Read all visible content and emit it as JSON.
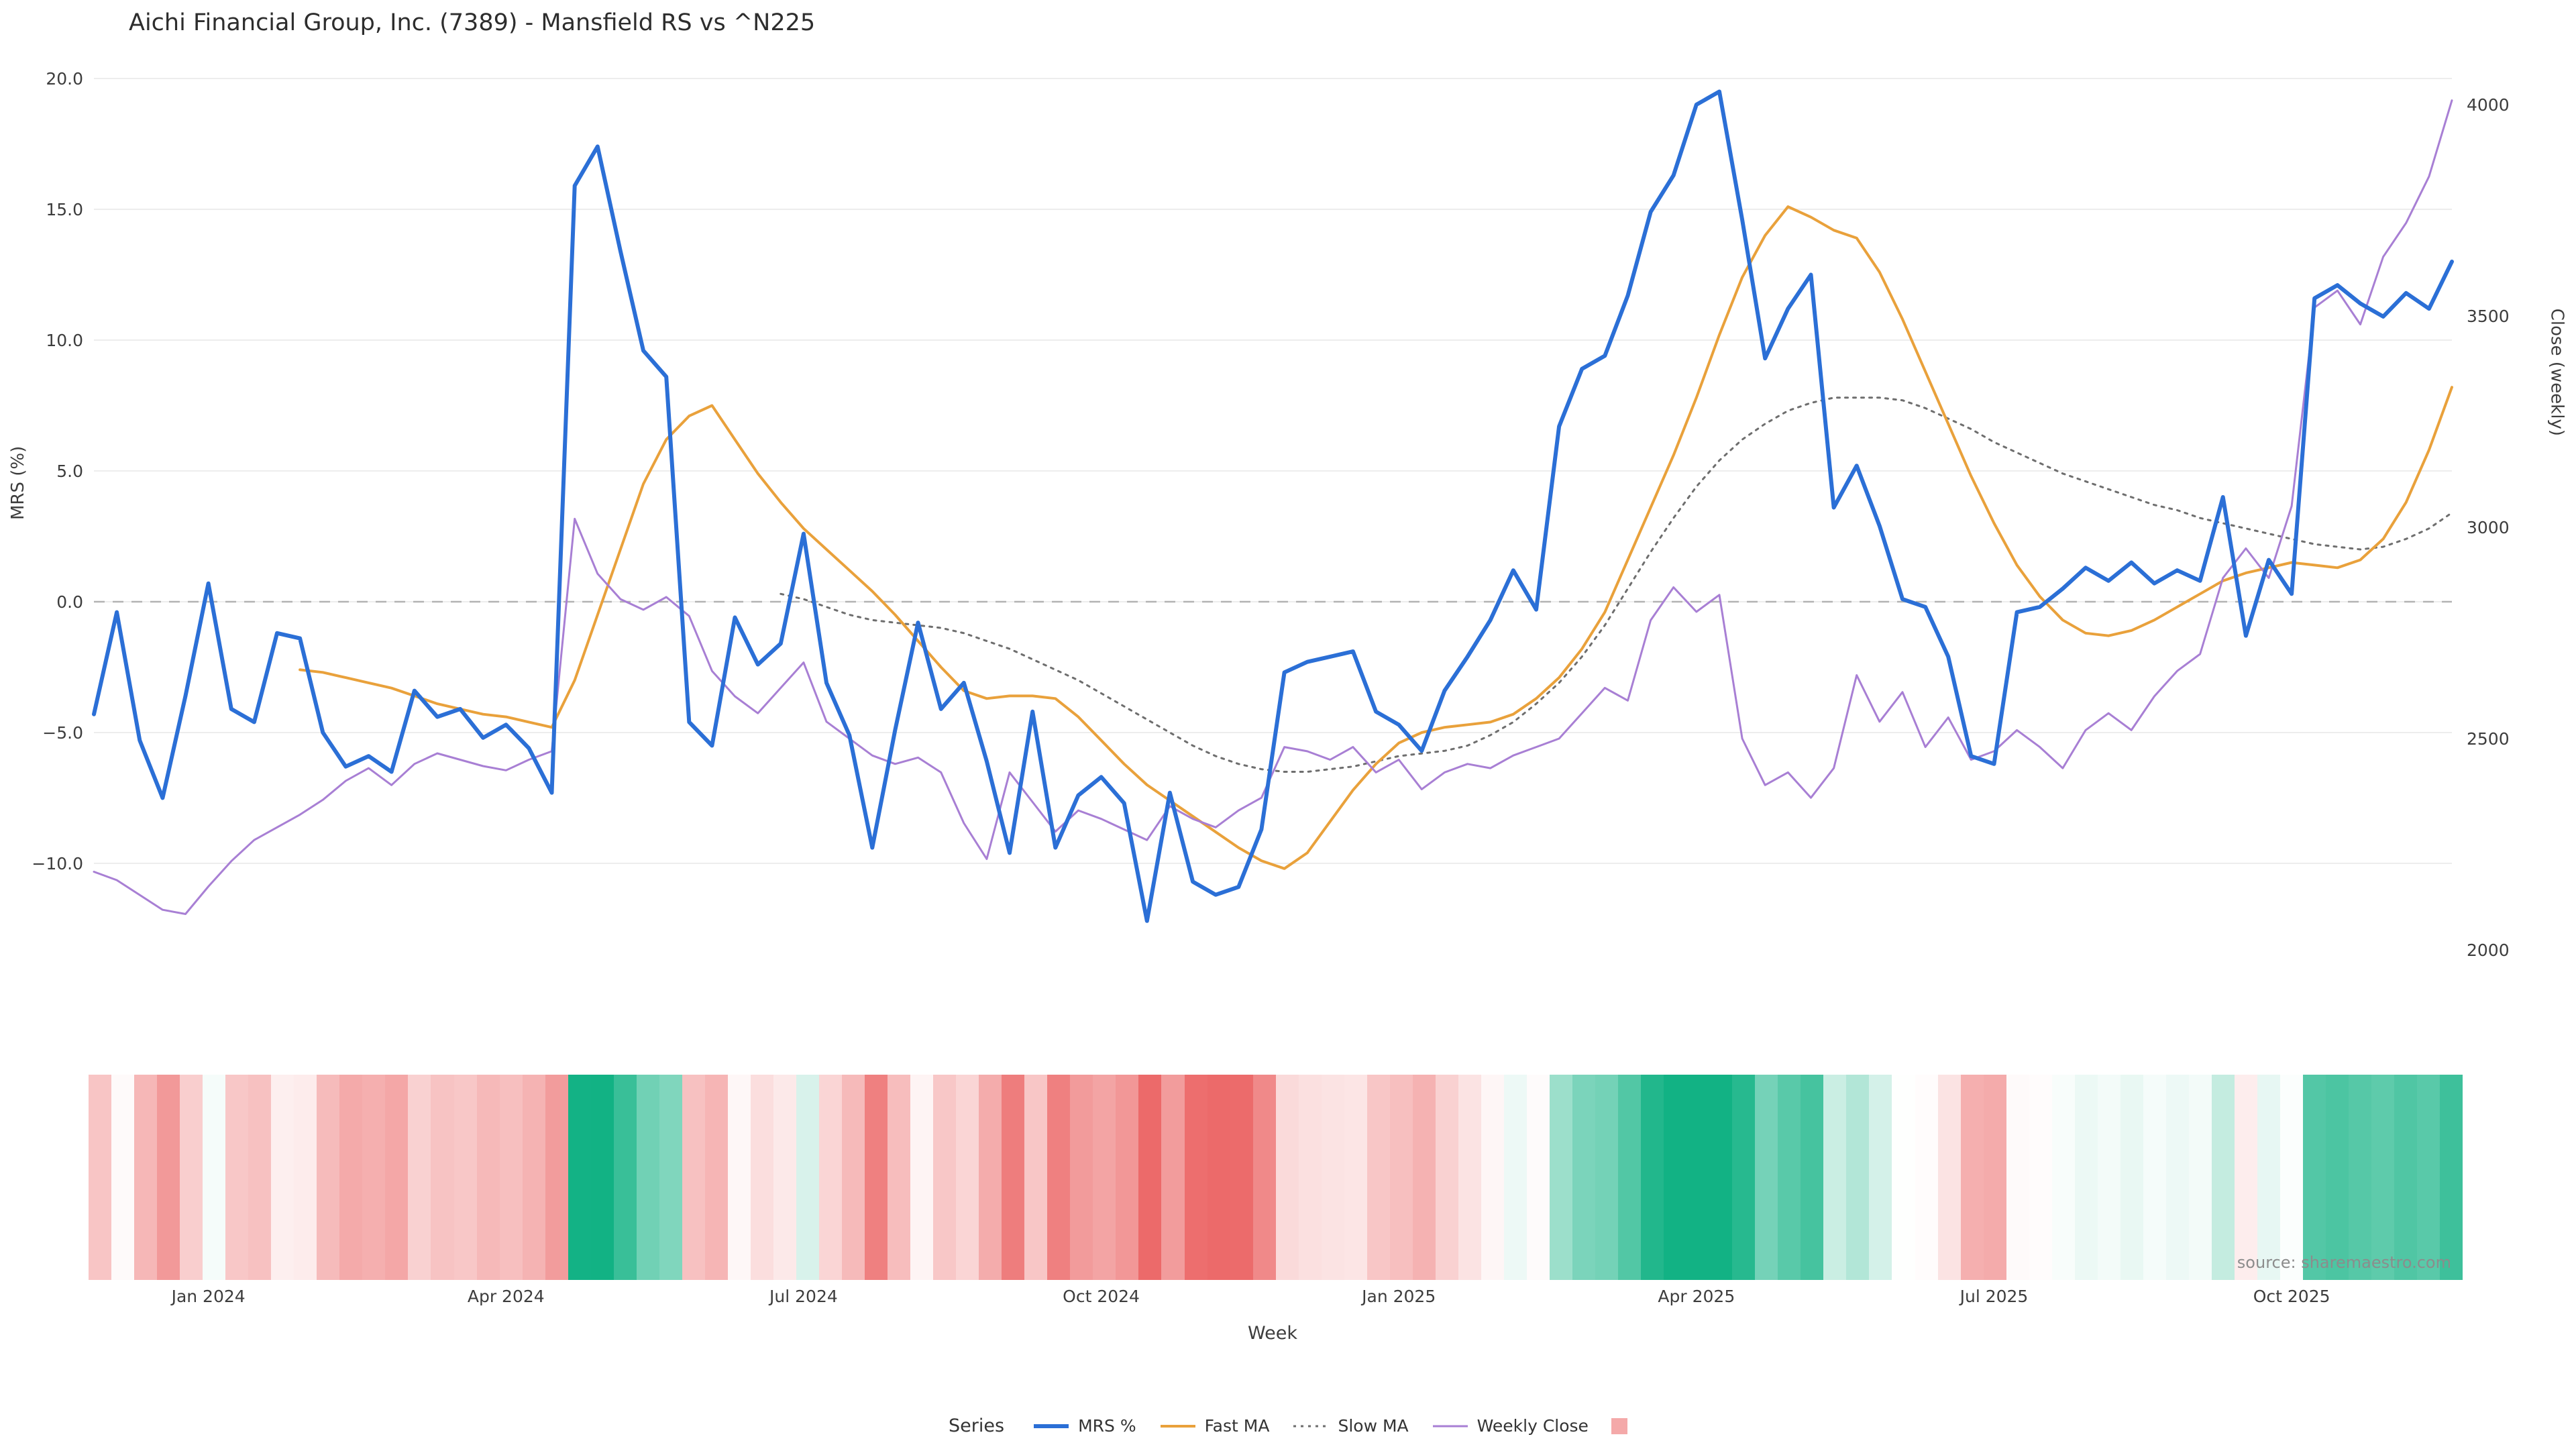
{
  "title": "Aichi Financial Group, Inc. (7389) - Mansfield RS vs ^N225",
  "source": "source: sharemaestro.com",
  "axes": {
    "left": {
      "label": "MRS (%)",
      "tick_labels": [
        "20.0",
        "15.0",
        "10.0",
        "5.0",
        "0.0",
        "−5.0",
        "−10.0"
      ],
      "tick_values": [
        20,
        15,
        10,
        5,
        0,
        -5,
        -10
      ]
    },
    "right": {
      "label": "Close (weekly)",
      "tick_labels": [
        "4000",
        "3500",
        "3000",
        "2500",
        "2000"
      ],
      "tick_values": [
        4000,
        3500,
        3000,
        2500,
        2000
      ]
    },
    "x": {
      "label": "Week",
      "tick_labels": [
        "Jan 2024",
        "Apr 2024",
        "Jul 2024",
        "Oct 2024",
        "Jan 2025",
        "Apr 2025",
        "Jul 2025",
        "Oct 2025"
      ],
      "tick_indices": [
        5,
        18,
        31,
        44,
        57,
        70,
        83,
        96
      ]
    }
  },
  "legend": {
    "title": "Series",
    "items": [
      {
        "label": "MRS %",
        "swatch": "line",
        "color": "#2b6fd6",
        "width": 6,
        "dash": ""
      },
      {
        "label": "Fast MA",
        "swatch": "line",
        "color": "#e9a13b",
        "width": 4,
        "dash": ""
      },
      {
        "label": "Slow MA",
        "swatch": "line",
        "color": "#6e6e6e",
        "width": 3,
        "dash": "4 7"
      },
      {
        "label": "Weekly Close",
        "swatch": "line",
        "color": "#a87fd4",
        "width": 3,
        "dash": ""
      },
      {
        "label": "",
        "swatch": "square",
        "color": "#f4a9a9"
      }
    ]
  },
  "colors": {
    "background": "#ffffff",
    "grid": "#ededed",
    "zero_line": "#b3b3b3",
    "title_text": "#2d2d2d",
    "tick_text": "#3d3d3d",
    "source_text": "#8c8c8c"
  },
  "chart_data": {
    "type": "line",
    "title": "Aichi Financial Group, Inc. (7389) - Mansfield RS vs ^N225",
    "x_axis": {
      "label": "Week",
      "unit": "week-index",
      "n_points": 104,
      "tick_labels": [
        "Jan 2024",
        "Apr 2024",
        "Jul 2024",
        "Oct 2024",
        "Jan 2025",
        "Apr 2025",
        "Jul 2025",
        "Oct 2025"
      ],
      "tick_indices": [
        5,
        18,
        31,
        44,
        57,
        70,
        83,
        96
      ]
    },
    "left_axis": {
      "label": "MRS (%)",
      "ticks": [
        20,
        15,
        10,
        5,
        0,
        -5,
        -10
      ],
      "zero_reference_line": true
    },
    "right_axis": {
      "label": "Close (weekly)",
      "ticks": [
        4000,
        3500,
        3000,
        2500,
        2000
      ]
    },
    "grid": "horizontal-only",
    "legend_position": "bottom",
    "series": [
      {
        "name": "MRS %",
        "axis": "left",
        "color": "#2b6fd6",
        "stroke_width": 6,
        "dash": "",
        "data_name": "mrs-line",
        "values": [
          -4.3,
          -0.4,
          -5.3,
          -7.5,
          -3.6,
          0.7,
          -4.1,
          -4.6,
          -1.2,
          -1.4,
          -5.0,
          -6.3,
          -5.9,
          -6.5,
          -3.4,
          -4.4,
          -4.1,
          -5.2,
          -4.7,
          -5.6,
          -7.3,
          15.9,
          17.4,
          13.4,
          9.6,
          8.6,
          -4.6,
          -5.5,
          -0.6,
          -2.4,
          -1.6,
          2.6,
          -3.1,
          -5.1,
          -9.4,
          -4.9,
          -0.8,
          -4.1,
          -3.1,
          -6.1,
          -9.6,
          -4.2,
          -9.4,
          -7.4,
          -6.7,
          -7.7,
          -12.2,
          -7.3,
          -10.7,
          -11.2,
          -10.9,
          -8.7,
          -2.7,
          -2.3,
          -2.1,
          -1.9,
          -4.2,
          -4.7,
          -5.7,
          -3.4,
          -2.1,
          -0.7,
          1.2,
          -0.3,
          6.7,
          8.9,
          9.4,
          11.7,
          14.9,
          16.3,
          19.0,
          19.5,
          14.6,
          9.3,
          11.2,
          12.5,
          3.6,
          5.2,
          2.9,
          0.1,
          -0.2,
          -2.1,
          -5.9,
          -6.2,
          -0.4,
          -0.2,
          0.5,
          1.3,
          0.8,
          1.5,
          0.7,
          1.2,
          0.8,
          4.0,
          -1.3,
          1.6,
          0.3,
          11.6,
          12.1,
          11.4,
          10.9,
          11.8,
          11.2,
          13.0
        ]
      },
      {
        "name": "Fast MA",
        "axis": "left",
        "color": "#e9a13b",
        "stroke_width": 4,
        "dash": "",
        "data_name": "fast-ma-line",
        "values": [
          null,
          null,
          null,
          null,
          null,
          null,
          null,
          null,
          null,
          -2.6,
          -2.7,
          -2.9,
          -3.1,
          -3.3,
          -3.6,
          -3.9,
          -4.1,
          -4.3,
          -4.4,
          -4.6,
          -4.8,
          -3.0,
          -0.5,
          2.0,
          4.5,
          6.2,
          7.1,
          7.5,
          6.2,
          4.9,
          3.8,
          2.8,
          2.0,
          1.2,
          0.4,
          -0.5,
          -1.5,
          -2.5,
          -3.4,
          -3.7,
          -3.6,
          -3.6,
          -3.7,
          -4.4,
          -5.3,
          -6.2,
          -7.0,
          -7.6,
          -8.2,
          -8.8,
          -9.4,
          -9.9,
          -10.2,
          -9.6,
          -8.4,
          -7.2,
          -6.2,
          -5.4,
          -5.0,
          -4.8,
          -4.7,
          -4.6,
          -4.3,
          -3.7,
          -2.9,
          -1.8,
          -0.4,
          1.6,
          3.6,
          5.6,
          7.8,
          10.2,
          12.4,
          14.0,
          15.1,
          14.7,
          14.2,
          13.9,
          12.6,
          10.8,
          8.8,
          6.8,
          4.8,
          3.0,
          1.4,
          0.2,
          -0.7,
          -1.2,
          -1.3,
          -1.1,
          -0.7,
          -0.2,
          0.3,
          0.8,
          1.1,
          1.3,
          1.5,
          1.4,
          1.3,
          1.6,
          2.4,
          3.8,
          5.8,
          8.2
        ]
      },
      {
        "name": "Slow MA",
        "axis": "left",
        "color": "#6e6e6e",
        "stroke_width": 3,
        "dash": "4 8",
        "data_name": "slow-ma-line",
        "values": [
          null,
          null,
          null,
          null,
          null,
          null,
          null,
          null,
          null,
          null,
          null,
          null,
          null,
          null,
          null,
          null,
          null,
          null,
          null,
          null,
          null,
          null,
          null,
          null,
          null,
          null,
          null,
          null,
          null,
          null,
          0.3,
          0.1,
          -0.2,
          -0.5,
          -0.7,
          -0.8,
          -0.9,
          -1.0,
          -1.2,
          -1.5,
          -1.8,
          -2.2,
          -2.6,
          -3.0,
          -3.5,
          -4.0,
          -4.5,
          -5.0,
          -5.5,
          -5.9,
          -6.2,
          -6.4,
          -6.5,
          -6.5,
          -6.4,
          -6.3,
          -6.1,
          -5.9,
          -5.8,
          -5.7,
          -5.5,
          -5.1,
          -4.6,
          -3.9,
          -3.1,
          -2.1,
          -0.9,
          0.5,
          1.9,
          3.2,
          4.4,
          5.4,
          6.2,
          6.8,
          7.3,
          7.6,
          7.8,
          7.8,
          7.8,
          7.7,
          7.4,
          7.0,
          6.6,
          6.1,
          5.7,
          5.3,
          4.9,
          4.6,
          4.3,
          4.0,
          3.7,
          3.5,
          3.2,
          3.0,
          2.8,
          2.6,
          2.4,
          2.2,
          2.1,
          2.0,
          2.1,
          2.4,
          2.8,
          3.4
        ]
      },
      {
        "name": "Weekly Close",
        "axis": "right",
        "color": "#a87fd4",
        "stroke_width": 3,
        "dash": "",
        "data_name": "weekly-close-line",
        "values": [
          2185,
          2165,
          2130,
          2095,
          2085,
          2150,
          2210,
          2260,
          2290,
          2320,
          2355,
          2400,
          2430,
          2390,
          2440,
          2465,
          2450,
          2435,
          2425,
          2450,
          2470,
          3020,
          2890,
          2830,
          2805,
          2835,
          2790,
          2660,
          2600,
          2560,
          2620,
          2680,
          2540,
          2500,
          2460,
          2440,
          2455,
          2420,
          2300,
          2215,
          2420,
          2350,
          2280,
          2330,
          2310,
          2285,
          2260,
          2340,
          2310,
          2290,
          2330,
          2360,
          2480,
          2470,
          2450,
          2480,
          2420,
          2450,
          2380,
          2420,
          2440,
          2430,
          2460,
          2480,
          2500,
          2560,
          2620,
          2590,
          2780,
          2858,
          2800,
          2840,
          2500,
          2390,
          2420,
          2360,
          2430,
          2650,
          2540,
          2610,
          2480,
          2550,
          2450,
          2470,
          2520,
          2480,
          2430,
          2520,
          2560,
          2520,
          2600,
          2660,
          2700,
          2880,
          2950,
          2880,
          3050,
          3520,
          3560,
          3480,
          3640,
          3720,
          3830,
          4010
        ]
      }
    ],
    "heatmap_strip": {
      "description": "weekly color band below plot, color derived from MRS % value",
      "source_series": "MRS %",
      "negative_color": "#ec6a6a",
      "positive_color": "#12b284",
      "neutral_color": "#ffffff",
      "negative_saturation_at": -11,
      "positive_saturation_at": 16
    }
  }
}
